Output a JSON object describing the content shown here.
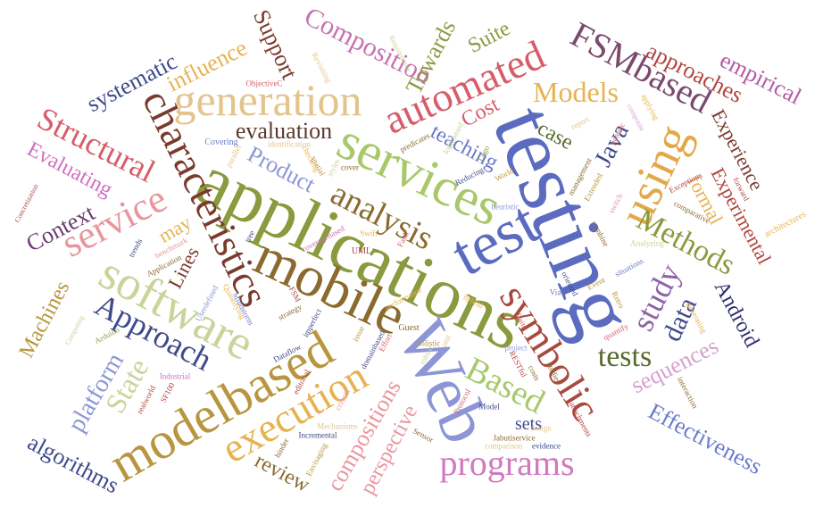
{
  "words": [
    {
      "text": "testing",
      "color": "#5b6bbf"
    },
    {
      "text": "applications",
      "color": "#8a9a3e"
    },
    {
      "text": "services",
      "color": "#a8c86a"
    },
    {
      "text": "mobile",
      "color": "#8a6a2e"
    },
    {
      "text": "Web",
      "color": "#8c96d6"
    },
    {
      "text": "test",
      "color": "#5b6bbf"
    },
    {
      "text": "characteristics",
      "color": "#7a3b2e"
    },
    {
      "text": "modelbased",
      "color": "#b89640"
    },
    {
      "text": "generation",
      "color": "#e3c48c"
    },
    {
      "text": "software",
      "color": "#c8d49a"
    },
    {
      "text": "symbolic",
      "color": "#a84a3e"
    },
    {
      "text": "using",
      "color": "#e2a94a"
    },
    {
      "text": "execution",
      "color": "#e6b350"
    },
    {
      "text": "programs",
      "color": "#d07ac0"
    },
    {
      "text": "automated",
      "color": "#d65d6a"
    },
    {
      "text": "Based",
      "color": "#a8c86a"
    },
    {
      "text": "analysis",
      "color": "#8a6a2e"
    },
    {
      "text": "service",
      "color": "#e8969e"
    },
    {
      "text": "Approach",
      "color": "#3e4a8c"
    },
    {
      "text": "FSMbased",
      "color": "#7a4a6e"
    },
    {
      "text": "Structural",
      "color": "#d65d6a"
    },
    {
      "text": "Models",
      "color": "#e6b350"
    },
    {
      "text": "study",
      "color": "#8e62a8"
    },
    {
      "text": "Methods",
      "color": "#8a9a3e"
    },
    {
      "text": "Composition",
      "color": "#c872b0"
    },
    {
      "text": "approaches",
      "color": "#b0443e"
    },
    {
      "text": "empirical",
      "color": "#b45aa0"
    },
    {
      "text": "tests",
      "color": "#5a6a2e"
    },
    {
      "text": "State",
      "color": "#c8d49a"
    },
    {
      "text": "data",
      "color": "#3e4a8c"
    },
    {
      "text": "Android",
      "color": "#2e2e6e"
    },
    {
      "text": "Java",
      "color": "#3e4a8c"
    },
    {
      "text": "Effectiveness",
      "color": "#6a7ac8"
    },
    {
      "text": "sequences",
      "color": "#d6a0d0"
    },
    {
      "text": "platform",
      "color": "#8c96d6"
    },
    {
      "text": "algorithms",
      "color": "#3e4a8c"
    },
    {
      "text": "compositions",
      "color": "#e8969e"
    },
    {
      "text": "perspective",
      "color": "#e8969e"
    },
    {
      "text": "review",
      "color": "#8a6a2e"
    },
    {
      "text": "Machines",
      "color": "#b89640"
    },
    {
      "text": "Context",
      "color": "#6a3a6e"
    },
    {
      "text": "Evaluating",
      "color": "#d070c0"
    },
    {
      "text": "systematic",
      "color": "#3e4a8c"
    },
    {
      "text": "influence",
      "color": "#e6b350"
    },
    {
      "text": "evaluation",
      "color": "#5a3a2e"
    },
    {
      "text": "Product",
      "color": "#8c96d6"
    },
    {
      "text": "Support",
      "color": "#7a3b2e"
    },
    {
      "text": "Towards",
      "color": "#8a9a3e"
    },
    {
      "text": "Suite",
      "color": "#8a9a3e"
    },
    {
      "text": "Cost",
      "color": "#d65d6a"
    },
    {
      "text": "teaching",
      "color": "#6a7ac8"
    },
    {
      "text": "case",
      "color": "#5a6a2e"
    },
    {
      "text": "Experience",
      "color": "#7a3b2e"
    },
    {
      "text": "Experimental",
      "color": "#b0443e"
    },
    {
      "text": "formal",
      "color": "#e6b350"
    },
    {
      "text": "Lines",
      "color": "#7a3b2e"
    },
    {
      "text": "may",
      "color": "#e6b350"
    },
    {
      "text": "sets",
      "color": "#3e4a8c"
    },
    {
      "text": "ObjectiveC",
      "color": "#d65d6a"
    },
    {
      "text": "Covering",
      "color": "#6a7ac8"
    },
    {
      "text": "identification",
      "color": "#e3c48c"
    },
    {
      "text": "Revisiting",
      "color": "#e3c48c"
    },
    {
      "text": "Requirements",
      "color": "#c8d49a"
    },
    {
      "text": "predicates",
      "color": "#8a6a2e"
    },
    {
      "text": "logicbased",
      "color": "#c8d49a"
    },
    {
      "text": "Lego",
      "color": "#8a9a3e"
    },
    {
      "text": "World",
      "color": "#b89640"
    },
    {
      "text": "report",
      "color": "#e3c48c"
    },
    {
      "text": "applying",
      "color": "#e6b350"
    },
    {
      "text": "composite",
      "color": "#d6a0d0"
    },
    {
      "text": "generic",
      "color": "#d65d6a"
    },
    {
      "text": "management",
      "color": "#8a6a2e"
    },
    {
      "text": "Extended",
      "color": "#b89640"
    },
    {
      "text": "Exceptions",
      "color": "#b0443e"
    },
    {
      "text": "comparative",
      "color": "#8a6a2e"
    },
    {
      "text": "forward",
      "color": "#b0443e"
    },
    {
      "text": "architectures",
      "color": "#e6b350"
    },
    {
      "text": "switch",
      "color": "#e8969e"
    },
    {
      "text": "heuristic",
      "color": "#8c96d6"
    },
    {
      "text": "Reducing",
      "color": "#3e4a8c"
    },
    {
      "text": "cover",
      "color": "#8a6a2e"
    },
    {
      "text": "checking",
      "color": "#e6b350"
    },
    {
      "text": "spatial",
      "color": "#b89640"
    },
    {
      "text": "styles",
      "color": "#c8d49a"
    },
    {
      "text": "parallel",
      "color": "#e3c48c"
    },
    {
      "text": "trends",
      "color": "#3e4a8c"
    },
    {
      "text": "benchmark",
      "color": "#e8969e"
    },
    {
      "text": "Application",
      "color": "#8a6a2e"
    },
    {
      "text": "Concretization",
      "color": "#b0443e"
    },
    {
      "text": "Swift",
      "color": "#e6b350"
    },
    {
      "text": "Fault",
      "color": "#d65d6a"
    },
    {
      "text": "UML",
      "color": "#b0443e"
    },
    {
      "text": "coveragebased",
      "color": "#c872b0"
    },
    {
      "text": "tree",
      "color": "#3e4a8c"
    },
    {
      "text": "Analyzing",
      "color": "#c8d49a"
    },
    {
      "text": "combine",
      "color": "#8a6a2e"
    },
    {
      "text": "Event",
      "color": "#b89640"
    },
    {
      "text": "oriented",
      "color": "#3e4a8c"
    },
    {
      "text": "situations",
      "color": "#6a7ac8"
    },
    {
      "text": "Via",
      "color": "#6a7ac8"
    },
    {
      "text": "Retro",
      "color": "#b89640"
    },
    {
      "text": "generating",
      "color": "#e6b350"
    },
    {
      "text": "quantify",
      "color": "#d65d6a"
    },
    {
      "text": "hybrid",
      "color": "#e6b350"
    },
    {
      "text": "performance",
      "color": "#e6b350"
    },
    {
      "text": "FSM",
      "color": "#b0443e"
    },
    {
      "text": "strategy",
      "color": "#8a6a2e"
    },
    {
      "text": "imperfect",
      "color": "#3e4a8c"
    },
    {
      "text": "Guest",
      "color": "#8a6a2e"
    },
    {
      "text": "issue",
      "color": "#b89640"
    },
    {
      "text": "domainbased",
      "color": "#3e4a8c"
    },
    {
      "text": "Effort",
      "color": "#d65d6a"
    },
    {
      "text": "holistic",
      "color": "#b89640"
    },
    {
      "text": "robust",
      "color": "#c8d49a"
    },
    {
      "text": "unit",
      "color": "#e3c48c"
    },
    {
      "text": "project",
      "color": "#8c96d6"
    },
    {
      "text": "finite",
      "color": "#d65d6a"
    },
    {
      "text": "RESTful",
      "color": "#b0443e"
    },
    {
      "text": "costs",
      "color": "#8a6a2e"
    },
    {
      "text": "studies",
      "color": "#8a6a2e"
    },
    {
      "text": "interaction",
      "color": "#8a6a2e"
    },
    {
      "text": "attachments",
      "color": "#b0443e"
    },
    {
      "text": "design",
      "color": "#e3c48c"
    },
    {
      "text": "Jabutiservice",
      "color": "#8a6a2e"
    },
    {
      "text": "comparison",
      "color": "#e3c48c"
    },
    {
      "text": "evidence",
      "color": "#3e4a8c"
    },
    {
      "text": "Model",
      "color": "#3e4a8c"
    },
    {
      "text": "Protocol",
      "color": "#d65d6a"
    },
    {
      "text": "Sensor",
      "color": "#8a6a2e"
    },
    {
      "text": "criteria",
      "color": "#e8969e"
    },
    {
      "text": "Mechanisms",
      "color": "#e3c48c"
    },
    {
      "text": "Incremental",
      "color": "#3e4a8c"
    },
    {
      "text": "Envisaging",
      "color": "#b89640"
    },
    {
      "text": "hinder",
      "color": "#8a6a2e"
    },
    {
      "text": "editorial",
      "color": "#b0443e"
    },
    {
      "text": "Dataflow",
      "color": "#3e4a8c"
    },
    {
      "text": "Quantifying",
      "color": "#e6b350"
    },
    {
      "text": "Mindstorm",
      "color": "#6a7ac8"
    },
    {
      "text": "Userdefined",
      "color": "#8c96d6"
    },
    {
      "text": "Industrial",
      "color": "#d070c0"
    },
    {
      "text": "SF100",
      "color": "#b0443e"
    },
    {
      "text": "realworld",
      "color": "#b0443e"
    },
    {
      "text": "Arduino",
      "color": "#8a9a3e"
    },
    {
      "text": "Computing",
      "color": "#c8d49a"
    }
  ]
}
